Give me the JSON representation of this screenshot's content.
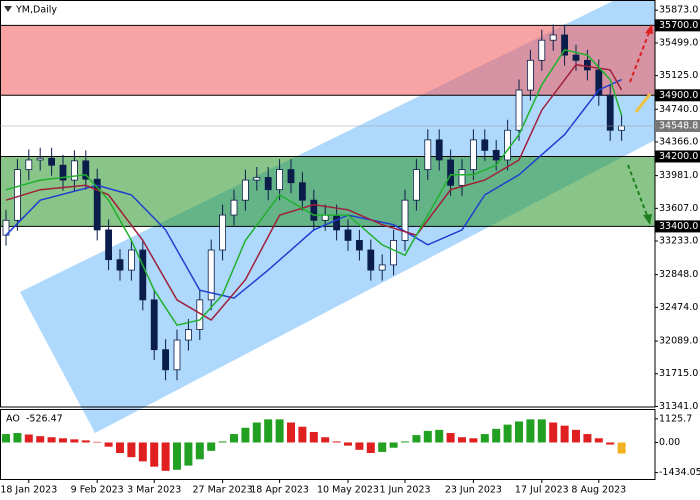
{
  "chart_data": {
    "type": "candlestick",
    "title": "YM,Daily",
    "categories": [
      null,
      null,
      "18 Jan 2023",
      null,
      null,
      null,
      null,
      null,
      "9 Feb 2023",
      null,
      null,
      null,
      null,
      "3 Mar 2023",
      null,
      null,
      null,
      null,
      null,
      "27 Mar 2023",
      null,
      null,
      null,
      null,
      "18 Apr 2023",
      null,
      null,
      null,
      null,
      null,
      "10 May 2023",
      null,
      null,
      null,
      null,
      "1 Jun 2023",
      null,
      null,
      null,
      null,
      null,
      "23 Jun 2023",
      null,
      null,
      null,
      null,
      null,
      "17 Jul 2023",
      null,
      null,
      null,
      null,
      "8 Aug 2023",
      null,
      null
    ],
    "candles": {
      "open": [
        33300,
        33470,
        34050,
        34160,
        34180,
        34100,
        33930,
        34150,
        33940,
        33360,
        33020,
        32900,
        33130,
        32560,
        31990,
        31760,
        32100,
        32220,
        32560,
        33130,
        33530,
        33700,
        33930,
        33960,
        33820,
        34050,
        33900,
        33700,
        33470,
        33530,
        33360,
        33240,
        33130,
        32900,
        32960,
        33240,
        33700,
        34050,
        34390,
        34160,
        33870,
        34050,
        34390,
        34270,
        34160,
        34500,
        34960,
        35300,
        35530,
        35590,
        35360,
        35300,
        35190,
        34900,
        34500
      ],
      "high": [
        33590,
        34170,
        34280,
        34300,
        34300,
        34220,
        34270,
        34270,
        34060,
        33480,
        33140,
        33250,
        33250,
        32680,
        32110,
        32220,
        32340,
        32680,
        33250,
        33650,
        33820,
        34050,
        34080,
        34080,
        34170,
        34170,
        34020,
        33820,
        33650,
        33650,
        33480,
        33360,
        33250,
        33080,
        33360,
        33820,
        34170,
        34510,
        34510,
        34280,
        34170,
        34510,
        34510,
        34390,
        34620,
        35080,
        35420,
        35650,
        35710,
        35710,
        35480,
        35420,
        35310,
        35020,
        34670
      ],
      "low": [
        33180,
        33350,
        33930,
        34040,
        33980,
        33810,
        33810,
        33820,
        33240,
        32900,
        32780,
        32780,
        32440,
        31870,
        31640,
        31640,
        31980,
        32100,
        32440,
        33010,
        33410,
        33580,
        33810,
        33700,
        33700,
        33780,
        33580,
        33350,
        33350,
        33240,
        33120,
        33010,
        32780,
        32780,
        32840,
        33120,
        33580,
        33930,
        34040,
        33750,
        33750,
        33930,
        34150,
        34040,
        34040,
        34380,
        34840,
        35180,
        35410,
        35240,
        35180,
        35070,
        34780,
        34380,
        34380
      ],
      "close": [
        33470,
        34050,
        34160,
        34180,
        34100,
        33930,
        34150,
        33940,
        33360,
        33020,
        32900,
        33130,
        32560,
        31990,
        31760,
        32100,
        32220,
        32560,
        33130,
        33530,
        33700,
        33930,
        33960,
        33820,
        34050,
        33900,
        33700,
        33470,
        33530,
        33360,
        33240,
        33130,
        32900,
        32960,
        33240,
        33700,
        34050,
        34390,
        34160,
        33870,
        34050,
        34390,
        34270,
        34160,
        34500,
        34960,
        35300,
        35530,
        35590,
        35360,
        35300,
        35190,
        34900,
        34500,
        34548.8
      ],
      "up_color": "#ffffff",
      "down_color": "#0b1d4a",
      "wick_color": "#0b1d4a"
    },
    "indicators": [
      {
        "color": "#1f3fd0",
        "x": [
          0,
          3,
          8,
          11,
          14,
          17,
          20,
          23,
          27,
          30,
          34,
          37,
          40,
          42,
          45,
          49,
          52,
          54
        ],
        "values": [
          33300,
          33700,
          33870,
          33760,
          33360,
          32670,
          32580,
          32900,
          33360,
          33530,
          33420,
          33190,
          33360,
          33760,
          33990,
          34450,
          34960,
          35080
        ]
      },
      {
        "color": "#a0203a",
        "x": [
          0,
          3,
          7,
          9,
          12,
          15,
          18,
          21,
          24,
          27,
          30,
          33,
          36,
          39,
          42,
          45,
          47,
          50,
          53,
          54
        ],
        "values": [
          33700,
          33820,
          33870,
          33760,
          33240,
          32560,
          32330,
          32790,
          33530,
          33650,
          33590,
          33420,
          33300,
          33820,
          33930,
          34160,
          34730,
          35250,
          35190,
          34960
        ]
      },
      {
        "color": "#22b030",
        "x": [
          0,
          3,
          7,
          9,
          11,
          13,
          15,
          17,
          19,
          21,
          24,
          27,
          30,
          33,
          35,
          37,
          39,
          41,
          43,
          45,
          47,
          49,
          51,
          53,
          54
        ],
        "values": [
          33820,
          33930,
          33990,
          33700,
          33240,
          32670,
          32270,
          32330,
          32620,
          33240,
          33760,
          33530,
          33530,
          33190,
          33070,
          33530,
          33990,
          33990,
          34100,
          34450,
          35020,
          35420,
          35360,
          35080,
          34670
        ]
      }
    ],
    "ylim": [
      31300,
      35990
    ],
    "yticks": [
      {
        "value": 35873,
        "label": "35873.0"
      },
      {
        "value": 35499,
        "label": "35499.0"
      },
      {
        "value": 35125,
        "label": "35125.0"
      },
      {
        "value": 34740,
        "label": "34740.0"
      },
      {
        "value": 34366,
        "label": "34366.0"
      },
      {
        "value": 33981,
        "label": "33981.0"
      },
      {
        "value": 33607,
        "label": "33607.0"
      },
      {
        "value": 33233,
        "label": "33233.0"
      },
      {
        "value": 32848,
        "label": "32848.0"
      },
      {
        "value": 32474,
        "label": "32474.0"
      },
      {
        "value": 32089,
        "label": "32089.0"
      },
      {
        "value": 31715,
        "label": "31715.0"
      },
      {
        "value": 31341,
        "label": "31341.0"
      }
    ],
    "levels": [
      {
        "value": 35700,
        "label": "35700.0"
      },
      {
        "value": 34900,
        "label": "34900.0"
      },
      {
        "value": 34200,
        "label": "34200.0"
      },
      {
        "value": 33400,
        "label": "33400.0"
      }
    ],
    "zone_colors": [
      "rgba(244,90,90,0.55)",
      "rgba(40,150,40,0.55)"
    ],
    "ao": {
      "name": "AO",
      "values": [
        400,
        450,
        380,
        300,
        250,
        200,
        150,
        100,
        30,
        -200,
        -500,
        -700,
        -900,
        -1150,
        -1350,
        -1300,
        -1100,
        -800,
        -400,
        50,
        400,
        700,
        950,
        1100,
        1100,
        950,
        750,
        500,
        250,
        50,
        -150,
        -350,
        -500,
        -450,
        -250,
        50,
        350,
        550,
        600,
        450,
        250,
        200,
        400,
        650,
        850,
        1000,
        1100,
        1100,
        950,
        800,
        600,
        400,
        200,
        -100,
        -526.47
      ],
      "up_color": "#22a022",
      "down_color": "#e02020",
      "current_color": "#f0b020",
      "ylim": [
        -1500,
        1450
      ],
      "yticks": [
        {
          "value": 1125.7,
          "label": "1125.7"
        },
        {
          "value": 0,
          "label": "0.00"
        },
        {
          "value": -1434.05,
          "label": "-1434.05"
        }
      ]
    }
  }
}
